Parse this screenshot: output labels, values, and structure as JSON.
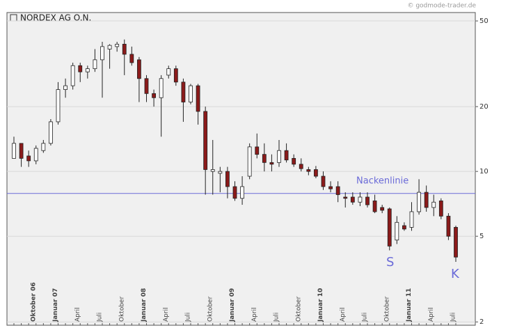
{
  "chart_data": {
    "type": "candlestick",
    "title": "NORDEX AG O.N.",
    "source": "© godmode-trader.de",
    "log_scale": true,
    "grid": true,
    "up_color": "#ffffff",
    "down_color": "#8b1a1a",
    "ylim": [
      1.93,
      54.7
    ],
    "yticks": [
      2,
      5,
      10,
      20,
      50
    ],
    "categories": [
      null,
      null,
      null,
      "Oktober 06",
      null,
      null,
      "Januar 07",
      null,
      null,
      "April",
      null,
      null,
      "Juli",
      null,
      null,
      "Oktober",
      null,
      null,
      "Januar 08",
      null,
      null,
      "April",
      null,
      null,
      "Juli",
      null,
      null,
      "Oktober",
      null,
      null,
      "Januar 09",
      null,
      null,
      "April",
      null,
      null,
      "Juli",
      null,
      null,
      "Oktober",
      null,
      null,
      "Januar 10",
      null,
      null,
      "April",
      null,
      null,
      "Juli",
      null,
      null,
      "Oktober",
      null,
      null,
      "Januar 11",
      null,
      null,
      "April",
      null,
      null,
      "Juli"
    ],
    "open": [
      11.5,
      13.5,
      11.8,
      11.2,
      12.5,
      13.5,
      17,
      24,
      25,
      31,
      29,
      30,
      33,
      37,
      38,
      39,
      35,
      33,
      27,
      23,
      22,
      28,
      30,
      26,
      21,
      25,
      19,
      10,
      9.8,
      10,
      8.5,
      7.5,
      9.5,
      13,
      12,
      11,
      11,
      12.5,
      11.5,
      10.8,
      10.2,
      10.2,
      9.5,
      8.5,
      8.5,
      7.6,
      7.6,
      7.2,
      7.6,
      7.3,
      6.8,
      6.7,
      4.8,
      5.6,
      5.5,
      6.5,
      8,
      6.8,
      7.3,
      6.2,
      5.5
    ],
    "high": [
      14.5,
      13.5,
      12.5,
      13.2,
      14,
      17.5,
      26,
      27,
      32,
      32,
      31,
      37,
      40,
      39,
      40,
      41,
      38,
      34,
      28,
      24,
      28,
      31,
      31,
      27,
      25.5,
      25.5,
      20,
      14,
      10.5,
      10.5,
      9,
      9.5,
      13.5,
      15,
      13.5,
      12,
      14,
      13.5,
      12,
      11.5,
      10.5,
      10.6,
      10,
      9,
      9,
      8,
      8,
      8,
      8,
      7.8,
      7,
      6.8,
      6.2,
      5.8,
      7.2,
      9.2,
      8.6,
      7.8,
      7.5,
      6.4,
      5.6
    ],
    "low": [
      11.5,
      10.5,
      10.5,
      10.8,
      12.2,
      13.2,
      16.5,
      22,
      24,
      26,
      27,
      29,
      22,
      30,
      36,
      28,
      31,
      21,
      21,
      20,
      14.5,
      27,
      25,
      17,
      20.5,
      16.5,
      7.8,
      7.8,
      8,
      7.5,
      7.3,
      7,
      9.2,
      11.5,
      10,
      10,
      10.5,
      11,
      10.5,
      10,
      9.6,
      9.3,
      8.2,
      8,
      7.2,
      6.8,
      7,
      6.9,
      6.8,
      6.4,
      6.4,
      4.3,
      4.6,
      5.3,
      5.3,
      6.3,
      6.5,
      6.2,
      6,
      4.8,
      3.8
    ],
    "close": [
      13.5,
      11.5,
      11.2,
      12.8,
      13.5,
      17,
      24,
      25,
      31,
      29,
      30,
      33,
      38,
      38.5,
      39,
      35,
      32,
      27,
      23,
      22,
      27,
      30,
      26,
      21,
      25,
      19,
      10.2,
      10.2,
      10,
      8.5,
      7.5,
      8.5,
      13,
      12,
      11,
      10.8,
      12.5,
      11.3,
      10.8,
      10.3,
      10,
      9.5,
      8.5,
      8.3,
      7.8,
      7.5,
      7.2,
      7.6,
      7,
      6.5,
      6.6,
      4.5,
      5.8,
      5.4,
      6.5,
      8,
      6.8,
      7.2,
      6.2,
      5,
      4
    ],
    "neckline": {
      "label": "Nackenlinie",
      "value": 7.9,
      "color": "#6a6ad8"
    },
    "annotations": [
      "S",
      "K"
    ]
  }
}
